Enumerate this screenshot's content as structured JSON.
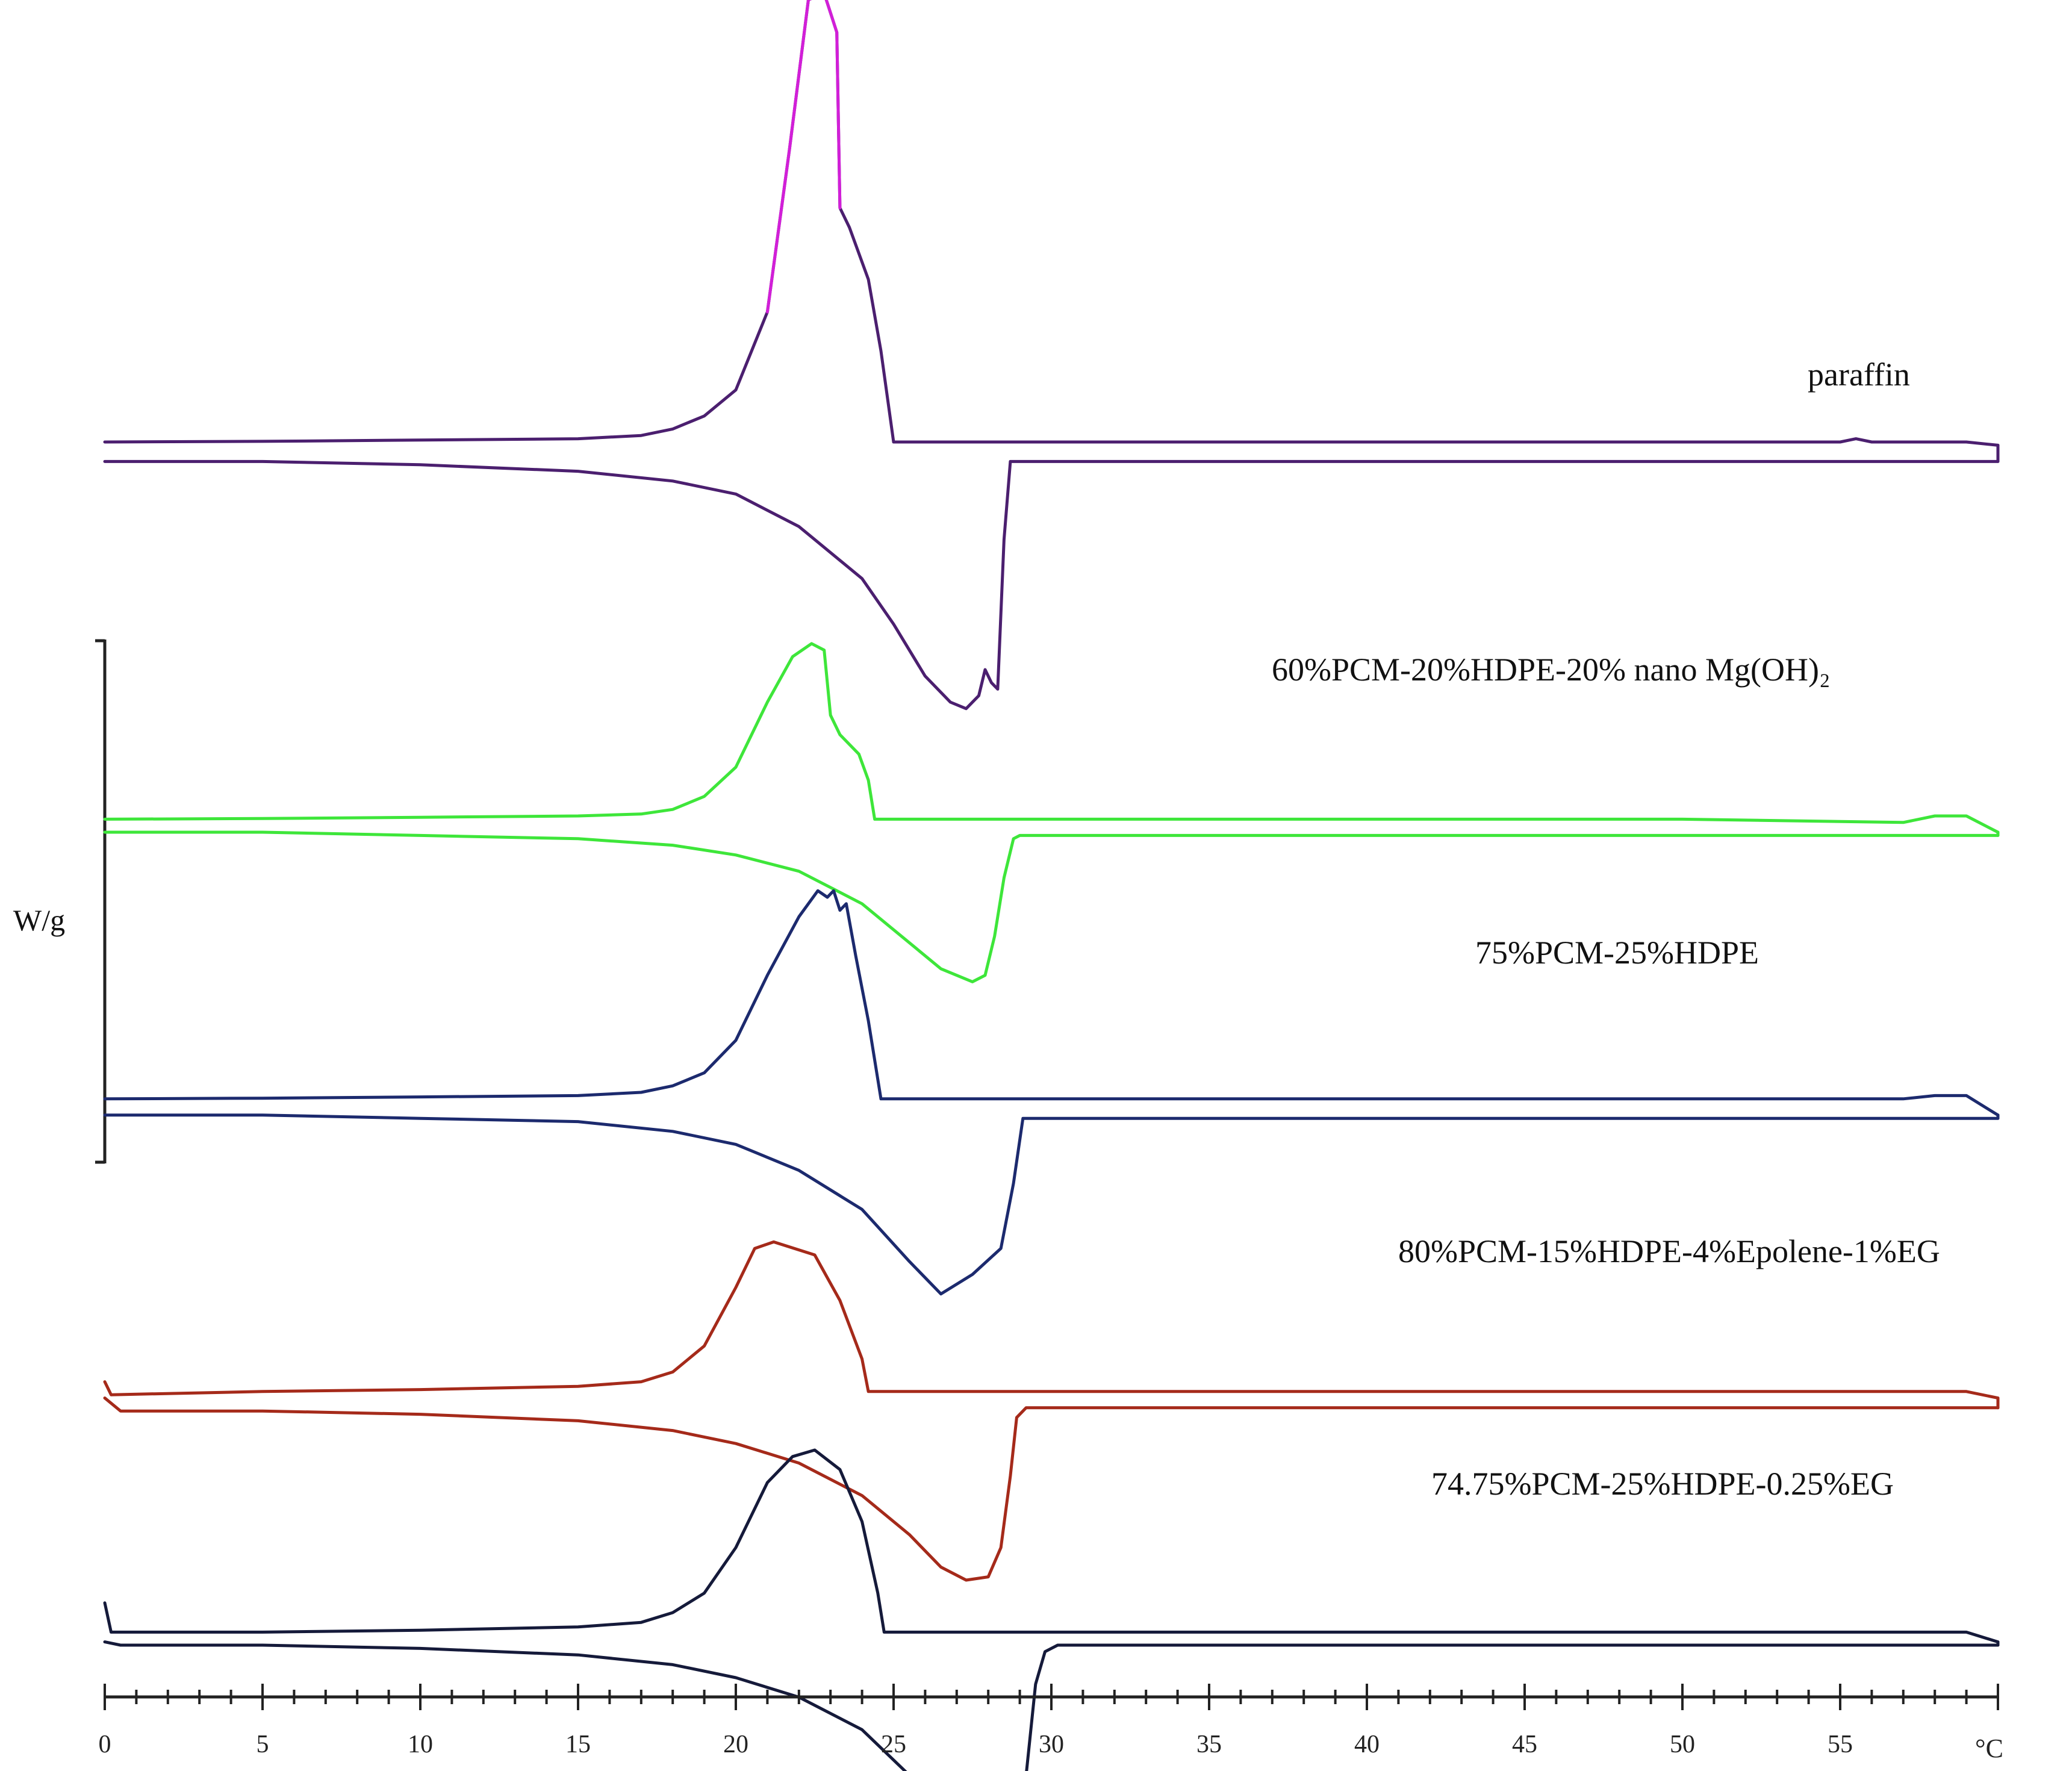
{
  "chart_data": {
    "type": "line",
    "title": "",
    "xlabel": "°C",
    "ylabel": "W/g",
    "xlim": [
      0,
      60
    ],
    "x_ticks": [
      0,
      5,
      10,
      15,
      20,
      25,
      30,
      35,
      40,
      45,
      50,
      55
    ],
    "x_unit": "°C",
    "grid": false,
    "legend": "labels next to curves",
    "series": [
      {
        "name": "paraffin",
        "color": "#4b1f6f",
        "peak_color": "#d21fd8",
        "baseline_offset": 0,
        "cooling": [
          [
            0,
            0
          ],
          [
            5,
            0.01
          ],
          [
            10,
            0.03
          ],
          [
            15,
            0.05
          ],
          [
            17,
            0.1
          ],
          [
            18,
            0.2
          ],
          [
            19,
            0.4
          ],
          [
            20,
            0.8
          ],
          [
            21,
            2
          ],
          [
            21.7,
            4.5
          ],
          [
            22.3,
            6.8
          ],
          [
            22.8,
            6.9
          ],
          [
            23.2,
            6.3
          ],
          [
            23.3,
            3.6
          ],
          [
            23.6,
            3.3
          ],
          [
            24.2,
            2.5
          ],
          [
            24.6,
            1.4
          ],
          [
            25,
            0
          ],
          [
            30,
            0
          ],
          [
            40,
            0
          ],
          [
            50,
            0
          ],
          [
            55,
            0
          ],
          [
            55.5,
            0.05
          ],
          [
            56,
            0
          ],
          [
            59,
            0
          ],
          [
            60,
            -0.05
          ]
        ],
        "heating": [
          [
            0,
            -0.3
          ],
          [
            5,
            -0.3
          ],
          [
            10,
            -0.35
          ],
          [
            15,
            -0.45
          ],
          [
            18,
            -0.6
          ],
          [
            20,
            -0.8
          ],
          [
            22,
            -1.3
          ],
          [
            24,
            -2.1
          ],
          [
            25,
            -2.8
          ],
          [
            26,
            -3.6
          ],
          [
            26.8,
            -4.0
          ],
          [
            27.3,
            -4.1
          ],
          [
            27.7,
            -3.9
          ],
          [
            27.9,
            -3.5
          ],
          [
            28.1,
            -3.7
          ],
          [
            28.3,
            -3.8
          ],
          [
            28.5,
            -1.5
          ],
          [
            28.7,
            -0.3
          ],
          [
            30,
            -0.3
          ],
          [
            40,
            -0.3
          ],
          [
            50,
            -0.3
          ],
          [
            60,
            -0.3
          ]
        ]
      },
      {
        "name": "60%PCM-20%HDPE-20% nano Mg(OH)₂",
        "color": "#3ee63a",
        "baseline_offset": -5.8,
        "cooling": [
          [
            0,
            0
          ],
          [
            5,
            0.01
          ],
          [
            10,
            0.03
          ],
          [
            15,
            0.05
          ],
          [
            17,
            0.08
          ],
          [
            18,
            0.15
          ],
          [
            19,
            0.35
          ],
          [
            20,
            0.8
          ],
          [
            21,
            1.8
          ],
          [
            21.8,
            2.5
          ],
          [
            22.4,
            2.7
          ],
          [
            22.8,
            2.6
          ],
          [
            23,
            1.6
          ],
          [
            23.3,
            1.3
          ],
          [
            23.9,
            1.0
          ],
          [
            24.2,
            0.6
          ],
          [
            24.4,
            0
          ],
          [
            30,
            0
          ],
          [
            40,
            0
          ],
          [
            50,
            0
          ],
          [
            57,
            -0.05
          ],
          [
            58,
            0.05
          ],
          [
            59,
            0.05
          ],
          [
            60,
            -0.2
          ]
        ],
        "heating": [
          [
            0,
            -0.2
          ],
          [
            5,
            -0.2
          ],
          [
            10,
            -0.25
          ],
          [
            15,
            -0.3
          ],
          [
            18,
            -0.4
          ],
          [
            20,
            -0.55
          ],
          [
            22,
            -0.8
          ],
          [
            24,
            -1.3
          ],
          [
            25.5,
            -1.9
          ],
          [
            26.5,
            -2.3
          ],
          [
            27.5,
            -2.5
          ],
          [
            27.9,
            -2.4
          ],
          [
            28.2,
            -1.8
          ],
          [
            28.5,
            -0.9
          ],
          [
            28.8,
            -0.3
          ],
          [
            29,
            -0.25
          ],
          [
            30,
            -0.25
          ],
          [
            40,
            -0.25
          ],
          [
            50,
            -0.25
          ],
          [
            60,
            -0.25
          ]
        ]
      },
      {
        "name": "75%PCM-25%HDPE",
        "color": "#1c2a6e",
        "baseline_offset": -10.1,
        "cooling": [
          [
            0,
            0
          ],
          [
            5,
            0.01
          ],
          [
            10,
            0.03
          ],
          [
            15,
            0.05
          ],
          [
            17,
            0.1
          ],
          [
            18,
            0.2
          ],
          [
            19,
            0.4
          ],
          [
            20,
            0.9
          ],
          [
            21,
            1.9
          ],
          [
            22,
            2.8
          ],
          [
            22.6,
            3.2
          ],
          [
            22.9,
            3.1
          ],
          [
            23.1,
            3.2
          ],
          [
            23.3,
            2.9
          ],
          [
            23.5,
            3.0
          ],
          [
            23.8,
            2.2
          ],
          [
            24.2,
            1.2
          ],
          [
            24.6,
            0
          ],
          [
            30,
            0
          ],
          [
            40,
            0
          ],
          [
            50,
            0
          ],
          [
            57,
            0
          ],
          [
            58,
            0.05
          ],
          [
            59,
            0.05
          ],
          [
            60,
            -0.25
          ]
        ],
        "heating": [
          [
            0,
            -0.25
          ],
          [
            5,
            -0.25
          ],
          [
            10,
            -0.3
          ],
          [
            15,
            -0.35
          ],
          [
            18,
            -0.5
          ],
          [
            20,
            -0.7
          ],
          [
            22,
            -1.1
          ],
          [
            24,
            -1.7
          ],
          [
            25.5,
            -2.5
          ],
          [
            26.5,
            -3.0
          ],
          [
            27.5,
            -2.7
          ],
          [
            28.4,
            -2.3
          ],
          [
            28.8,
            -1.3
          ],
          [
            29.1,
            -0.3
          ],
          [
            30,
            -0.3
          ],
          [
            40,
            -0.3
          ],
          [
            50,
            -0.3
          ],
          [
            60,
            -0.3
          ]
        ]
      },
      {
        "name": "80%PCM-15%HDPE-4%Epolene-1%EG",
        "color": "#a52a1a",
        "baseline_offset": -14.6,
        "cooling": [
          [
            0,
            0.15
          ],
          [
            0.2,
            -0.05
          ],
          [
            5,
            0
          ],
          [
            10,
            0.03
          ],
          [
            15,
            0.08
          ],
          [
            17,
            0.15
          ],
          [
            18,
            0.3
          ],
          [
            19,
            0.7
          ],
          [
            20,
            1.6
          ],
          [
            20.6,
            2.2
          ],
          [
            21.2,
            2.3
          ],
          [
            22.5,
            2.1
          ],
          [
            23.3,
            1.4
          ],
          [
            24,
            0.5
          ],
          [
            24.2,
            0
          ],
          [
            30,
            0
          ],
          [
            40,
            0
          ],
          [
            50,
            0
          ],
          [
            59,
            0
          ],
          [
            60,
            -0.1
          ]
        ],
        "heating": [
          [
            0,
            -0.1
          ],
          [
            0.5,
            -0.3
          ],
          [
            5,
            -0.3
          ],
          [
            10,
            -0.35
          ],
          [
            15,
            -0.45
          ],
          [
            18,
            -0.6
          ],
          [
            20,
            -0.8
          ],
          [
            22,
            -1.1
          ],
          [
            24,
            -1.6
          ],
          [
            25.5,
            -2.2
          ],
          [
            26.5,
            -2.7
          ],
          [
            27.3,
            -2.9
          ],
          [
            28,
            -2.85
          ],
          [
            28.4,
            -2.4
          ],
          [
            28.7,
            -1.3
          ],
          [
            28.9,
            -0.4
          ],
          [
            29.2,
            -0.25
          ],
          [
            30,
            -0.25
          ],
          [
            40,
            -0.25
          ],
          [
            50,
            -0.25
          ],
          [
            60,
            -0.25
          ]
        ]
      },
      {
        "name": "74.75%PCM-25%HDPE-0.25%EG",
        "color": "#151a3a",
        "baseline_offset": -18.3,
        "cooling": [
          [
            0,
            0.45
          ],
          [
            0.2,
            0
          ],
          [
            5,
            0
          ],
          [
            10,
            0.03
          ],
          [
            15,
            0.08
          ],
          [
            17,
            0.15
          ],
          [
            18,
            0.3
          ],
          [
            19,
            0.6
          ],
          [
            20,
            1.3
          ],
          [
            21,
            2.3
          ],
          [
            21.8,
            2.7
          ],
          [
            22.5,
            2.8
          ],
          [
            23.3,
            2.5
          ],
          [
            24,
            1.7
          ],
          [
            24.5,
            0.6
          ],
          [
            24.7,
            0
          ],
          [
            30,
            0
          ],
          [
            40,
            0
          ],
          [
            50,
            0
          ],
          [
            59,
            0
          ],
          [
            60,
            -0.15
          ]
        ],
        "heating": [
          [
            0,
            -0.15
          ],
          [
            0.5,
            -0.2
          ],
          [
            5,
            -0.2
          ],
          [
            10,
            -0.25
          ],
          [
            15,
            -0.35
          ],
          [
            18,
            -0.5
          ],
          [
            20,
            -0.7
          ],
          [
            22,
            -1.0
          ],
          [
            24,
            -1.5
          ],
          [
            25.5,
            -2.2
          ],
          [
            26.8,
            -2.7
          ],
          [
            28,
            -2.95
          ],
          [
            28.9,
            -2.8
          ],
          [
            29.2,
            -2.2
          ],
          [
            29.5,
            -0.8
          ],
          [
            29.8,
            -0.3
          ],
          [
            30.2,
            -0.2
          ],
          [
            40,
            -0.2
          ],
          [
            50,
            -0.2
          ],
          [
            60,
            -0.2
          ]
        ]
      }
    ]
  }
}
